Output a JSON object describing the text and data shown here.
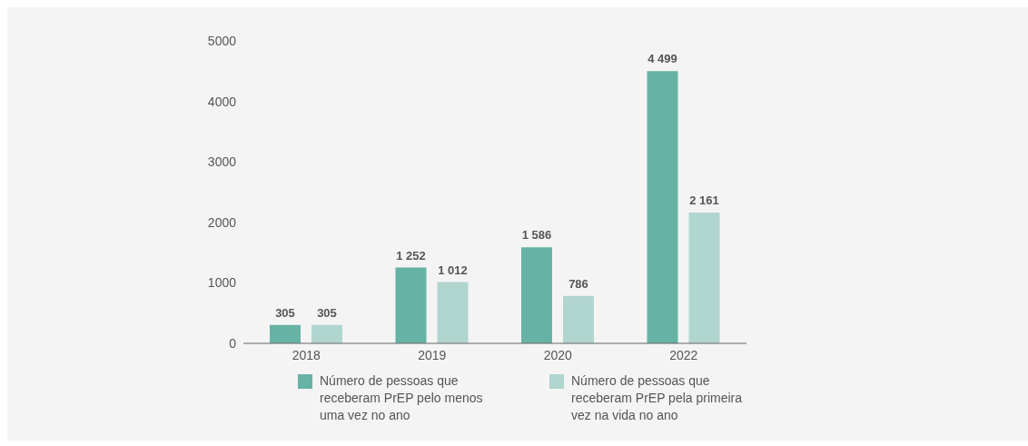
{
  "chart_data": {
    "type": "bar",
    "categories": [
      "2018",
      "2019",
      "2020",
      "2022"
    ],
    "series": [
      {
        "name": "Número de pessoas que receberam PrEP pelo menos uma vez no ano",
        "color": "#66b3a6",
        "values": [
          305,
          1252,
          1586,
          4499
        ],
        "value_labels": [
          "305",
          "1 252",
          "1 586",
          "4 499"
        ]
      },
      {
        "name": "Número de pessoas que receberam PrEP pela primeira vez na vida no ano",
        "color": "#b1d5cf",
        "values": [
          305,
          1012,
          786,
          2161
        ],
        "value_labels": [
          "305",
          "1 012",
          "786",
          "2 161"
        ]
      }
    ],
    "ylim": [
      0,
      5000
    ],
    "yticks": [
      0,
      1000,
      2000,
      3000,
      4000,
      5000
    ],
    "grid": false,
    "legend": "bottom"
  }
}
